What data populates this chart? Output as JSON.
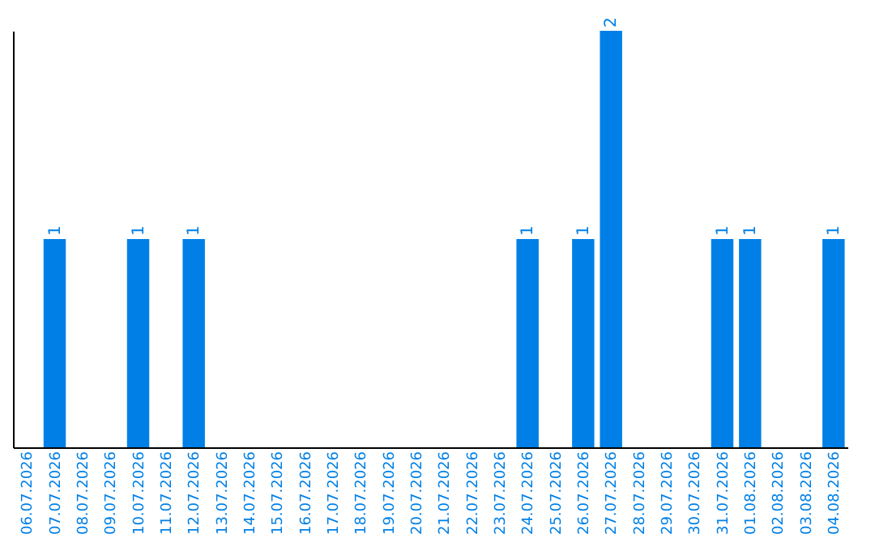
{
  "chart_data": {
    "type": "bar",
    "categories": [
      "06.07.2026",
      "07.07.2026",
      "08.07.2026",
      "09.07.2026",
      "10.07.2026",
      "11.07.2026",
      "12.07.2026",
      "13.07.2026",
      "14.07.2026",
      "15.07.2026",
      "16.07.2026",
      "17.07.2026",
      "18.07.2026",
      "19.07.2026",
      "20.07.2026",
      "21.07.2026",
      "22.07.2026",
      "23.07.2026",
      "24.07.2026",
      "25.07.2026",
      "26.07.2026",
      "27.07.2026",
      "28.07.2026",
      "29.07.2026",
      "30.07.2026",
      "31.07.2026",
      "01.08.2026",
      "02.08.2026",
      "03.08.2026",
      "04.08.2026"
    ],
    "values": [
      0,
      1,
      0,
      0,
      1,
      0,
      1,
      0,
      0,
      0,
      0,
      0,
      0,
      0,
      0,
      0,
      0,
      0,
      1,
      0,
      1,
      2,
      0,
      0,
      0,
      1,
      1,
      0,
      0,
      1
    ],
    "value_labels": [
      null,
      "1",
      null,
      null,
      "1",
      null,
      "1",
      null,
      null,
      null,
      null,
      null,
      null,
      null,
      null,
      null,
      null,
      null,
      "1",
      null,
      "1",
      "2",
      null,
      null,
      null,
      "1",
      "1",
      null,
      null,
      "1"
    ],
    "color": "#0080e6",
    "grid": false,
    "tick_labels": "x"
  }
}
